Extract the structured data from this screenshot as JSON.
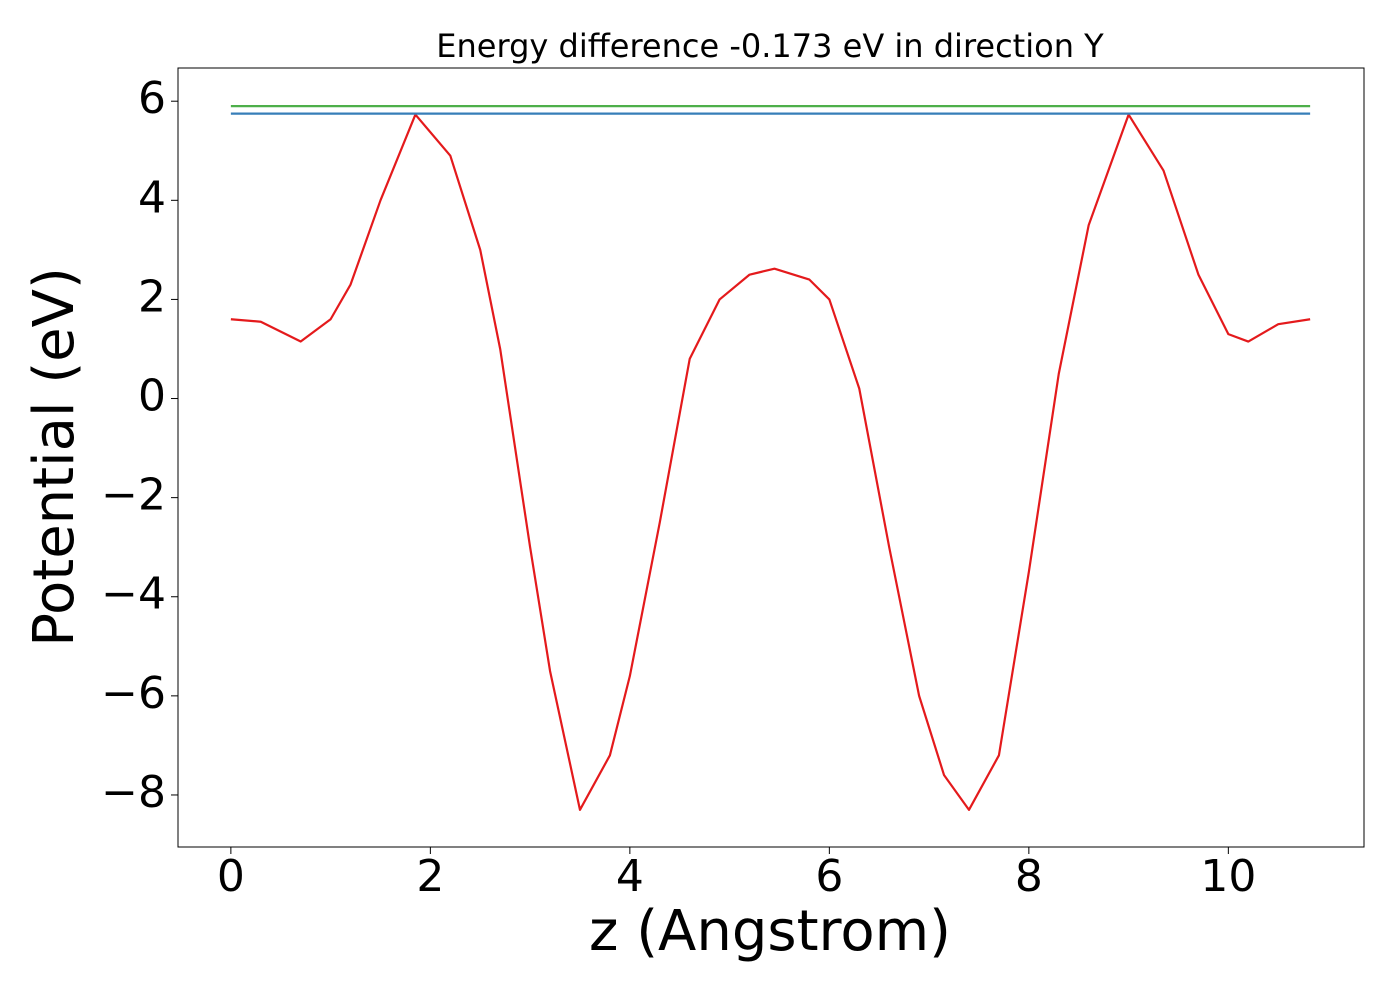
{
  "chart_data": {
    "type": "line",
    "title": "Energy difference -0.173 eV in direction Y",
    "x_label": "z (Angstrom)",
    "y_label": "Potential (eV)",
    "xlim": [
      -0.53,
      11.36
    ],
    "ylim": [
      -9.05,
      6.67
    ],
    "xticks": [
      0,
      2,
      4,
      6,
      8,
      10
    ],
    "yticks": [
      {
        "value": -8,
        "label": "−8"
      },
      {
        "value": -6,
        "label": "−6"
      },
      {
        "value": -4,
        "label": "−4"
      },
      {
        "value": -2,
        "label": "−2"
      },
      0,
      2,
      4,
      6
    ],
    "series": [
      {
        "color": "#e41a1c",
        "x": [
          0,
          0.3,
          0.7,
          1.0,
          1.2,
          1.5,
          1.85,
          2.2,
          2.5,
          2.7,
          3.0,
          3.2,
          3.5,
          3.8,
          4.0,
          4.3,
          4.6,
          4.9,
          5.2,
          5.45,
          5.8,
          6.0,
          6.3,
          6.6,
          6.9,
          7.15,
          7.4,
          7.7,
          8.0,
          8.3,
          8.6,
          9.0,
          9.35,
          9.7,
          10.0,
          10.2,
          10.5,
          10.82
        ],
        "values": [
          1.6,
          1.55,
          1.15,
          1.6,
          2.3,
          4.0,
          5.73,
          4.9,
          3.0,
          1.0,
          -3.0,
          -5.5,
          -8.3,
          -7.2,
          -5.6,
          -2.5,
          0.8,
          2.0,
          2.5,
          2.62,
          2.4,
          2.0,
          0.2,
          -3.0,
          -6.0,
          -7.6,
          -8.3,
          -7.2,
          -3.5,
          0.5,
          3.5,
          5.73,
          4.6,
          2.5,
          1.3,
          1.15,
          1.5,
          1.6
        ]
      },
      {
        "color": "#377eb8",
        "x": [
          0,
          10.82
        ],
        "values": [
          5.75,
          5.75
        ]
      },
      {
        "color": "#4daf4a",
        "x": [
          0,
          10.82
        ],
        "values": [
          5.9,
          5.9
        ]
      }
    ]
  }
}
